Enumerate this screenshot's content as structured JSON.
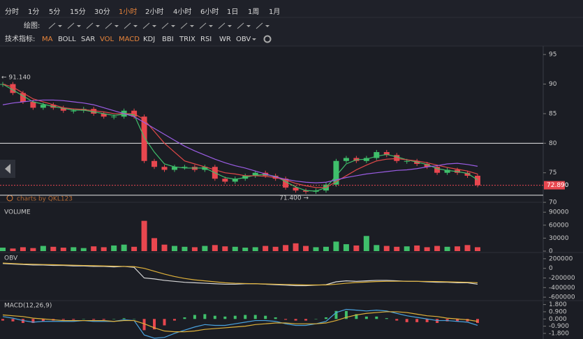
{
  "toolbar": {
    "timeframes": [
      "分时",
      "1分",
      "5分",
      "15分",
      "30分",
      "1小时",
      "2小时",
      "4小时",
      "6小时",
      "1日",
      "1周",
      "1月"
    ],
    "active_timeframe": 5,
    "draw_label": "绘图:",
    "indicator_label": "技术指标:",
    "indicators": [
      "MA",
      "BOLL",
      "SAR",
      "VOL",
      "MACD",
      "KDJ",
      "BBI",
      "TRIX",
      "RSI",
      "WR",
      "OBV"
    ],
    "active_indicators": [
      0,
      3,
      4
    ]
  },
  "watermark": "charts by QKL123",
  "chart_data": [
    {
      "type": "candlestick",
      "up_color": "#3fbf6b",
      "down_color": "#e8474f",
      "values": [
        90,
        88.5,
        87,
        86,
        86.5,
        86,
        85.5,
        85.5,
        85.8,
        85,
        84.5,
        84.5,
        85.5,
        84.5,
        77,
        76,
        75.5,
        76,
        76,
        75.5,
        76,
        74,
        73.5,
        74,
        74.5,
        75,
        74.5,
        74,
        72.5,
        72,
        71.8,
        72,
        73,
        77,
        77.5,
        77,
        77.5,
        78.5,
        78,
        77,
        77,
        76.5,
        76,
        75,
        75.5,
        75,
        74.5,
        72.9
      ],
      "series": [
        {
          "color": "#3fbf6b",
          "values": [
            90,
            89,
            88,
            87,
            86.6,
            86.2,
            85.9,
            85.6,
            85.6,
            85.3,
            85,
            84.7,
            84.9,
            84.8,
            81,
            78.5,
            76.5,
            76,
            75.8,
            75.8,
            75.8,
            75,
            74.2,
            73.9,
            74.2,
            74.6,
            74.7,
            74.4,
            73.5,
            72.6,
            72,
            71.9,
            72.5,
            74.5,
            76.5,
            77.2,
            77.3,
            77.8,
            78.1,
            77.7,
            77.2,
            76.8,
            76.4,
            75.7,
            75.4,
            75.2,
            74.9,
            73.8
          ]
        },
        {
          "color": "#e04848",
          "values": [
            90,
            89.5,
            88.5,
            87.5,
            87,
            86.5,
            86,
            85.8,
            85.7,
            85.5,
            85.3,
            85,
            85,
            85,
            84,
            82,
            80,
            78.5,
            77,
            76.5,
            76,
            75.5,
            75,
            74.8,
            74.5,
            74.5,
            74.4,
            74.2,
            73.8,
            73.2,
            72.8,
            72.5,
            72.5,
            73.5,
            74.5,
            75.5,
            76.3,
            77,
            77.3,
            77.4,
            77.2,
            77,
            76.7,
            76.3,
            75.9,
            75.6,
            75.3,
            74.8
          ]
        },
        {
          "color": "#9b5de5",
          "values": [
            86.5,
            86.8,
            87,
            87.2,
            87.3,
            87.3,
            87.2,
            87,
            86.8,
            86.5,
            86,
            85.5,
            85,
            84.5,
            83.5,
            82.5,
            81.5,
            80.5,
            79.5,
            78.7,
            78,
            77.3,
            76.7,
            76.2,
            75.8,
            75.3,
            74.8,
            74.3,
            73.9,
            73.6,
            73.4,
            73.3,
            73.4,
            73.8,
            74.2,
            74.5,
            74.8,
            75,
            75.2,
            75.4,
            75.5,
            75.7,
            76,
            76.2,
            76.5,
            76.6,
            76.4,
            76.1
          ]
        }
      ],
      "ylim": [
        70.6,
        96.2
      ],
      "yticks": [
        95,
        90,
        85,
        80,
        75,
        70
      ],
      "hlines": [
        80,
        71.2
      ],
      "last_price": {
        "value": 72.89,
        "label": "72.890"
      },
      "max_marker": {
        "value": 91.14,
        "label": "← 91.140"
      },
      "min_marker": {
        "value": 71.4,
        "label": "71.400 →"
      }
    },
    {
      "type": "bar",
      "title": "VOLUME",
      "values": [
        8000,
        6000,
        9000,
        7000,
        12000,
        10000,
        8000,
        9000,
        7000,
        11000,
        9000,
        13000,
        15000,
        10000,
        70000,
        30000,
        15000,
        12000,
        10000,
        9000,
        12000,
        14000,
        11000,
        10000,
        8000,
        9000,
        12000,
        10000,
        14000,
        18000,
        12000,
        9000,
        10000,
        22000,
        16000,
        13000,
        35000,
        14000,
        12000,
        10000,
        11000,
        13000,
        9000,
        12000,
        10000,
        11000,
        14000,
        9000
      ],
      "ylim": [
        0,
        100000
      ],
      "yticks": [
        90000,
        60000,
        30000,
        0
      ]
    },
    {
      "type": "line",
      "title": "OBV",
      "series": [
        {
          "color": "#d8d8d8",
          "values": [
            100000,
            90000,
            80000,
            70000,
            70000,
            60000,
            60000,
            50000,
            50000,
            40000,
            40000,
            30000,
            40000,
            20000,
            -200000,
            -220000,
            -250000,
            -270000,
            -290000,
            -300000,
            -310000,
            -320000,
            -330000,
            -330000,
            -320000,
            -320000,
            -330000,
            -340000,
            -350000,
            -360000,
            -360000,
            -350000,
            -340000,
            -280000,
            -260000,
            -270000,
            -260000,
            -250000,
            -250000,
            -260000,
            -270000,
            -270000,
            -280000,
            -290000,
            -290000,
            -300000,
            -300000,
            -330000
          ]
        },
        {
          "color": "#e0b23a",
          "values": [
            110000,
            100000,
            90000,
            85000,
            80000,
            75000,
            70000,
            65000,
            60000,
            55000,
            50000,
            45000,
            40000,
            35000,
            0,
            -60000,
            -120000,
            -170000,
            -210000,
            -240000,
            -260000,
            -280000,
            -300000,
            -310000,
            -315000,
            -320000,
            -325000,
            -330000,
            -335000,
            -340000,
            -345000,
            -345000,
            -345000,
            -330000,
            -310000,
            -295000,
            -285000,
            -275000,
            -270000,
            -268000,
            -268000,
            -270000,
            -272000,
            -275000,
            -280000,
            -285000,
            -290000,
            -300000
          ]
        }
      ],
      "ylim": [
        -657000,
        300000
      ],
      "yticks": [
        200000,
        0,
        -200000,
        -400000,
        -600000
      ]
    },
    {
      "type": "macd",
      "title": "MACD(12,26,9)",
      "up_color": "#3fbf6b",
      "down_color": "#e8474f",
      "values": [
        -0.2,
        -0.3,
        -0.5,
        -0.5,
        -0.3,
        -0.2,
        -0.1,
        -0.1,
        0,
        -0.1,
        -0.1,
        0,
        0.1,
        0,
        -1.4,
        -1.3,
        -0.8,
        -0.2,
        0.2,
        0.5,
        0.6,
        0.4,
        0.3,
        0.4,
        0.5,
        0.5,
        0.4,
        0.2,
        -0.1,
        -0.2,
        -0.2,
        0,
        0.2,
        1.0,
        1.0,
        0.6,
        0.3,
        0.3,
        0.1,
        -0.2,
        -0.4,
        -0.4,
        -0.4,
        -0.5,
        -0.3,
        -0.3,
        -0.3,
        -0.5
      ],
      "series": [
        {
          "color": "#4aa3df",
          "values": [
            0.3,
            0.1,
            -0.2,
            -0.4,
            -0.3,
            -0.3,
            -0.3,
            -0.3,
            -0.2,
            -0.3,
            -0.3,
            -0.3,
            -0.1,
            -0.2,
            -2,
            -2.4,
            -2.3,
            -1.8,
            -1.4,
            -1,
            -0.7,
            -0.8,
            -0.8,
            -0.6,
            -0.4,
            -0.2,
            -0.2,
            -0.3,
            -0.6,
            -0.8,
            -0.8,
            -0.6,
            -0.3,
            0.8,
            1.2,
            1.1,
            1,
            1.1,
            1.0,
            0.7,
            0.4,
            0.2,
            0.0,
            -0.2,
            -0.2,
            -0.3,
            -0.4,
            -0.8
          ]
        },
        {
          "color": "#e0b23a",
          "values": [
            0.5,
            0.4,
            0.3,
            0.1,
            0,
            -0.1,
            -0.2,
            -0.2,
            -0.2,
            -0.2,
            -0.2,
            -0.3,
            -0.2,
            -0.2,
            -0.6,
            -1.1,
            -1.5,
            -1.6,
            -1.6,
            -1.5,
            -1.3,
            -1.2,
            -1.1,
            -1.0,
            -0.9,
            -0.7,
            -0.6,
            -0.5,
            -0.5,
            -0.6,
            -0.6,
            -0.6,
            -0.5,
            -0.2,
            0.2,
            0.5,
            0.7,
            0.8,
            0.9,
            0.9,
            0.8,
            0.6,
            0.4,
            0.3,
            0.1,
            0,
            -0.1,
            -0.3
          ]
        }
      ],
      "ylim": [
        -2.5,
        2.2
      ],
      "yticks": [
        {
          "value": 1.8,
          "label": "1.800"
        },
        {
          "value": 0.9,
          "label": "0.900"
        },
        {
          "value": 0,
          "label": "0.000"
        },
        {
          "value": -0.9,
          "label": "-0.900"
        },
        {
          "value": -1.8,
          "label": "-1.800"
        }
      ]
    }
  ]
}
